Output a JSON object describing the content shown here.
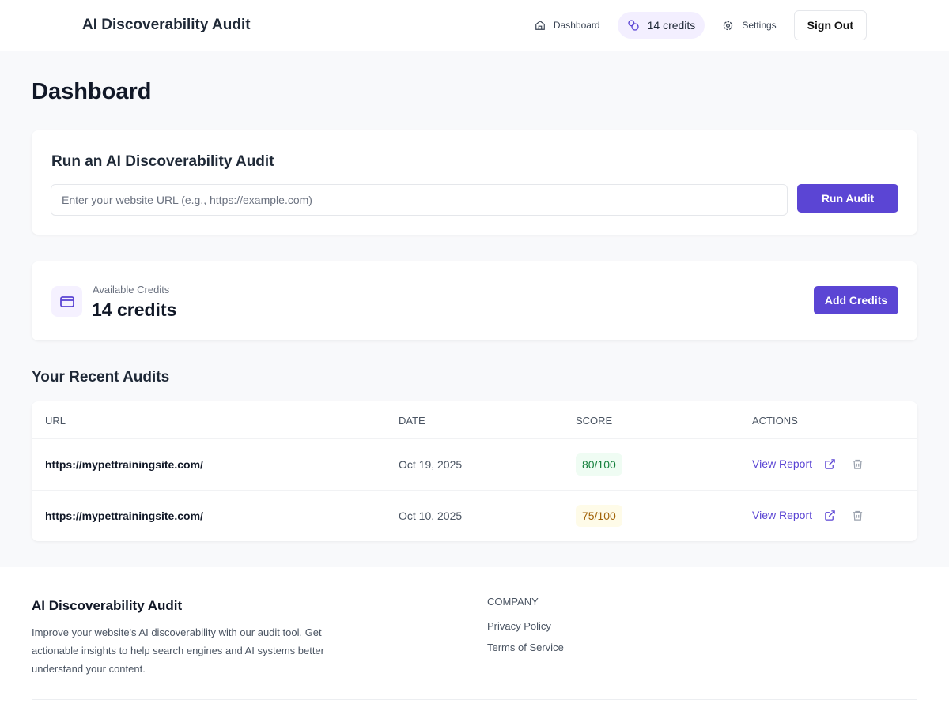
{
  "header": {
    "brand": "AI Discoverability Audit",
    "nav": {
      "dashboard": "Dashboard",
      "credits": "14 credits",
      "settings": "Settings",
      "sign_out": "Sign Out"
    }
  },
  "page": {
    "title": "Dashboard"
  },
  "audit_form": {
    "title": "Run an AI Discoverability Audit",
    "placeholder": "Enter your website URL (e.g., https://example.com)",
    "value": "",
    "button": "Run Audit"
  },
  "credits": {
    "label": "Available Credits",
    "value": "14 credits",
    "button": "Add Credits"
  },
  "recent": {
    "title": "Your Recent Audits",
    "columns": [
      "URL",
      "DATE",
      "SCORE",
      "ACTIONS"
    ],
    "rows": [
      {
        "url": "https://mypettrainingsite.com/",
        "date": "Oct 19, 2025",
        "score": "80/100",
        "score_color": "#15803d",
        "score_bg": "#effcf3",
        "action": "View Report"
      },
      {
        "url": "https://mypettrainingsite.com/",
        "date": "Oct 10, 2025",
        "score": "75/100",
        "score_color": "#a16207",
        "score_bg": "#fefbe8",
        "action": "View Report"
      }
    ]
  },
  "footer": {
    "title": "AI Discoverability Audit",
    "description": "Improve your website's AI discoverability with our audit tool. Get actionable insights to help search engines and AI systems better understand your content.",
    "company_heading": "COMPANY",
    "links": [
      "Privacy Policy",
      "Terms of Service"
    ]
  },
  "colors": {
    "accent": "#5b45d4"
  }
}
